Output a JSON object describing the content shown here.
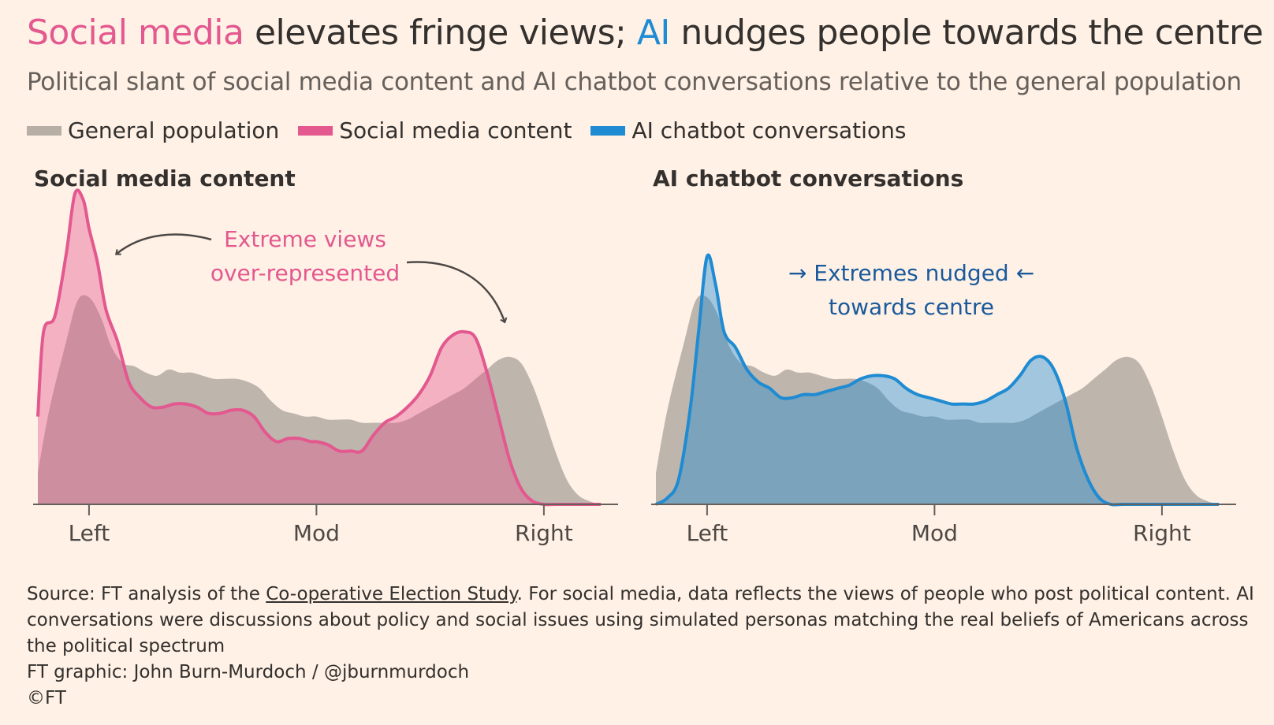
{
  "title": {
    "part1": "Social media",
    "part2": " elevates fringe views; ",
    "part3": "AI",
    "part4": " nudges people towards the centre"
  },
  "subtitle": "Political slant of social media content and AI chatbot conversations relative to the general population",
  "legend": [
    {
      "label": "General population",
      "color": "#B7AEA6"
    },
    {
      "label": "Social media content",
      "color": "#E3588F"
    },
    {
      "label": "AI chatbot conversations",
      "color": "#1F8BD2"
    }
  ],
  "chart_data": [
    {
      "type": "area",
      "title": "Social media content",
      "x_ticks": [
        "Left",
        "Mod",
        "Right"
      ],
      "x_tick_values": [
        0.1,
        0.5,
        0.9
      ],
      "xlim": [
        0.01,
        1.0
      ],
      "ylim": [
        0,
        1.0
      ],
      "grid": false,
      "annotation": [
        "Extreme views",
        "over-represented"
      ],
      "series": [
        {
          "name": "General population",
          "color": "#B7AEA6",
          "x": [
            0.01,
            0.03,
            0.06,
            0.08,
            0.1,
            0.12,
            0.14,
            0.16,
            0.18,
            0.2,
            0.22,
            0.24,
            0.26,
            0.28,
            0.3,
            0.32,
            0.34,
            0.36,
            0.38,
            0.4,
            0.42,
            0.44,
            0.46,
            0.48,
            0.5,
            0.52,
            0.54,
            0.56,
            0.58,
            0.6,
            0.62,
            0.64,
            0.66,
            0.68,
            0.7,
            0.72,
            0.74,
            0.76,
            0.78,
            0.8,
            0.82,
            0.84,
            0.86,
            0.88,
            0.9,
            0.92,
            0.94,
            0.96,
            0.98,
            1.0
          ],
          "y": [
            0.1,
            0.3,
            0.52,
            0.65,
            0.66,
            0.6,
            0.5,
            0.45,
            0.44,
            0.42,
            0.41,
            0.43,
            0.42,
            0.42,
            0.41,
            0.4,
            0.4,
            0.4,
            0.39,
            0.37,
            0.33,
            0.3,
            0.29,
            0.28,
            0.28,
            0.27,
            0.27,
            0.27,
            0.26,
            0.26,
            0.26,
            0.26,
            0.27,
            0.29,
            0.31,
            0.33,
            0.35,
            0.37,
            0.4,
            0.43,
            0.46,
            0.47,
            0.45,
            0.38,
            0.28,
            0.17,
            0.08,
            0.03,
            0.01,
            0.0
          ]
        },
        {
          "name": "Social media content",
          "color": "#E3588F",
          "x": [
            0.01,
            0.02,
            0.04,
            0.06,
            0.075,
            0.09,
            0.1,
            0.115,
            0.13,
            0.15,
            0.17,
            0.19,
            0.21,
            0.23,
            0.25,
            0.27,
            0.29,
            0.31,
            0.33,
            0.35,
            0.37,
            0.39,
            0.41,
            0.43,
            0.45,
            0.47,
            0.49,
            0.5,
            0.52,
            0.54,
            0.56,
            0.58,
            0.6,
            0.62,
            0.64,
            0.66,
            0.68,
            0.7,
            0.72,
            0.74,
            0.76,
            0.78,
            0.8,
            0.82,
            0.84,
            0.86,
            0.88,
            0.9,
            0.92,
            0.94,
            0.96,
            0.98,
            1.0
          ],
          "y": [
            0.28,
            0.55,
            0.6,
            0.8,
            0.99,
            0.97,
            0.88,
            0.77,
            0.62,
            0.52,
            0.39,
            0.34,
            0.31,
            0.31,
            0.32,
            0.32,
            0.31,
            0.29,
            0.29,
            0.3,
            0.3,
            0.28,
            0.23,
            0.2,
            0.21,
            0.21,
            0.2,
            0.2,
            0.19,
            0.17,
            0.17,
            0.17,
            0.22,
            0.26,
            0.28,
            0.31,
            0.35,
            0.41,
            0.5,
            0.54,
            0.55,
            0.53,
            0.42,
            0.28,
            0.14,
            0.05,
            0.01,
            0.0,
            0.0,
            0.0,
            0.0,
            0.0,
            0.0
          ]
        }
      ]
    },
    {
      "type": "area",
      "title": "AI chatbot conversations",
      "x_ticks": [
        "Left",
        "Mod",
        "Right"
      ],
      "x_tick_values": [
        0.1,
        0.5,
        0.9
      ],
      "xlim": [
        0.01,
        1.0
      ],
      "ylim": [
        0,
        1.0
      ],
      "grid": false,
      "annotation": [
        "→ Extremes nudged ←",
        "towards centre"
      ],
      "series": [
        {
          "name": "General population",
          "color": "#B7AEA6",
          "x": [
            0.01,
            0.03,
            0.06,
            0.08,
            0.1,
            0.12,
            0.14,
            0.16,
            0.18,
            0.2,
            0.22,
            0.24,
            0.26,
            0.28,
            0.3,
            0.32,
            0.34,
            0.36,
            0.38,
            0.4,
            0.42,
            0.44,
            0.46,
            0.48,
            0.5,
            0.52,
            0.54,
            0.56,
            0.58,
            0.6,
            0.62,
            0.64,
            0.66,
            0.68,
            0.7,
            0.72,
            0.74,
            0.76,
            0.78,
            0.8,
            0.82,
            0.84,
            0.86,
            0.88,
            0.9,
            0.92,
            0.94,
            0.96,
            0.98,
            1.0
          ],
          "y": [
            0.1,
            0.3,
            0.52,
            0.65,
            0.66,
            0.6,
            0.5,
            0.45,
            0.44,
            0.42,
            0.41,
            0.43,
            0.42,
            0.42,
            0.41,
            0.4,
            0.4,
            0.4,
            0.39,
            0.37,
            0.33,
            0.3,
            0.29,
            0.28,
            0.28,
            0.27,
            0.27,
            0.27,
            0.26,
            0.26,
            0.26,
            0.26,
            0.27,
            0.29,
            0.31,
            0.33,
            0.35,
            0.37,
            0.4,
            0.43,
            0.46,
            0.47,
            0.45,
            0.38,
            0.28,
            0.17,
            0.08,
            0.03,
            0.01,
            0.0
          ]
        },
        {
          "name": "AI chatbot conversations",
          "color": "#1F8BD2",
          "x": [
            0.01,
            0.03,
            0.05,
            0.07,
            0.085,
            0.1,
            0.115,
            0.13,
            0.15,
            0.17,
            0.19,
            0.21,
            0.23,
            0.25,
            0.27,
            0.29,
            0.31,
            0.33,
            0.35,
            0.37,
            0.39,
            0.41,
            0.43,
            0.45,
            0.47,
            0.49,
            0.51,
            0.53,
            0.55,
            0.57,
            0.59,
            0.61,
            0.63,
            0.65,
            0.67,
            0.69,
            0.71,
            0.73,
            0.75,
            0.77,
            0.79,
            0.81,
            0.83,
            0.85,
            0.87,
            0.89,
            0.91,
            0.93,
            0.95,
            0.97,
            1.0
          ],
          "y": [
            0.0,
            0.02,
            0.08,
            0.3,
            0.55,
            0.79,
            0.7,
            0.55,
            0.5,
            0.43,
            0.39,
            0.37,
            0.34,
            0.34,
            0.35,
            0.35,
            0.36,
            0.37,
            0.38,
            0.4,
            0.41,
            0.41,
            0.4,
            0.37,
            0.35,
            0.34,
            0.33,
            0.32,
            0.32,
            0.32,
            0.33,
            0.35,
            0.37,
            0.41,
            0.46,
            0.47,
            0.43,
            0.33,
            0.18,
            0.08,
            0.02,
            0.0,
            0.0,
            0.0,
            0.0,
            0.0,
            0.0,
            0.0,
            0.0,
            0.0,
            0.0
          ]
        }
      ]
    }
  ],
  "footer": {
    "source_prefix": "Source: FT analysis of the ",
    "source_link": "Co-operative Election Study",
    "source_suffix": ". For social media, data reflects the views of people who post political content. AI conversations were discussions about policy and social issues using simulated personas matching the real beliefs of Americans across the political spectrum",
    "credit": "FT graphic: John Burn-Murdoch / @jburnmurdoch",
    "copyright": "©FT"
  }
}
